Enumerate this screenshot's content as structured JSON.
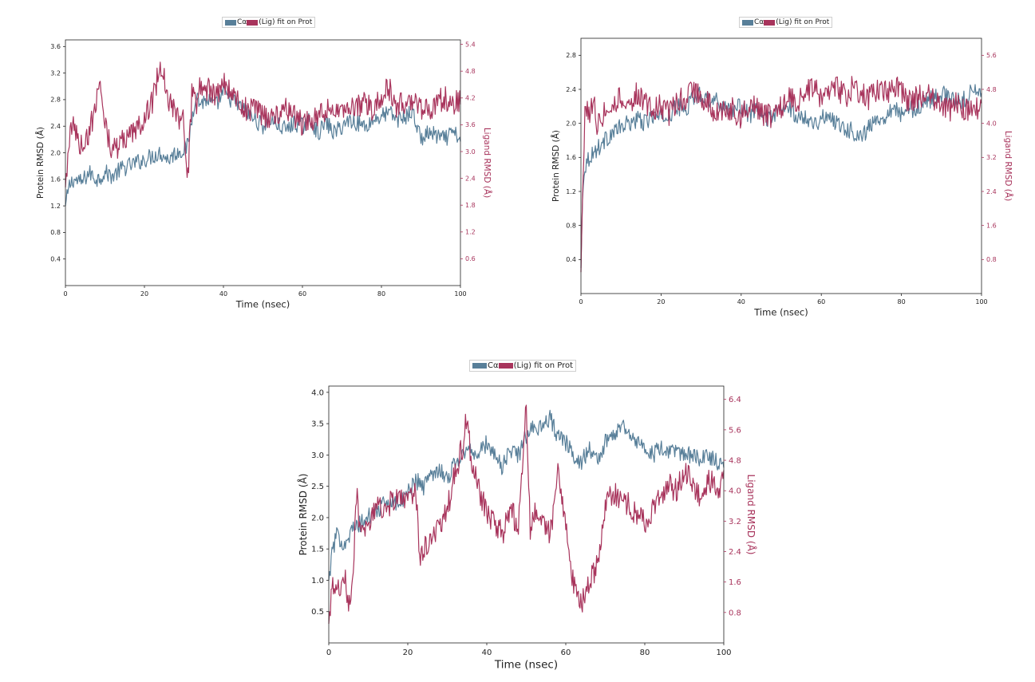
{
  "legend": {
    "label_ca": "Cα",
    "label_lig": "(Lig) fit on Prot"
  },
  "colors": {
    "protein": "#587f99",
    "ligand": "#a8345c",
    "axis": "#222222"
  },
  "chart_data": [
    {
      "type": "line",
      "xlabel": "Time (nsec)",
      "ylabel_left": "Protein RMSD (Å)",
      "ylabel_right": "Ligand RMSD (Å)",
      "xlim": [
        0,
        100
      ],
      "ylim_left": [
        0,
        3.7
      ],
      "ylim_right": [
        0,
        5.5
      ],
      "x_ticks": [
        0,
        20,
        40,
        60,
        80,
        100
      ],
      "y_ticks_left": [
        "0.4",
        "0.8",
        "1.2",
        "1.6",
        "2.0",
        "2.4",
        "2.8",
        "3.2",
        "3.6"
      ],
      "y_ticks_right": [
        "0.6",
        "1.2",
        "1.8",
        "2.4",
        "3.0",
        "3.6",
        "4.2",
        "4.8",
        "5.4"
      ],
      "series": [
        {
          "name": "Cα",
          "axis": "left",
          "x": [
            0,
            1,
            2,
            4,
            6,
            8,
            10,
            12,
            14,
            16,
            18,
            20,
            22,
            24,
            26,
            28,
            30,
            31,
            32,
            33,
            34,
            36,
            38,
            40,
            42,
            44,
            46,
            48,
            50,
            52,
            54,
            56,
            58,
            60,
            62,
            64,
            66,
            68,
            70,
            72,
            74,
            76,
            78,
            80,
            82,
            84,
            86,
            88,
            90,
            92,
            94,
            96,
            98,
            100
          ],
          "y": [
            1.2,
            1.5,
            1.6,
            1.55,
            1.7,
            1.6,
            1.7,
            1.65,
            1.75,
            1.8,
            1.85,
            1.9,
            1.95,
            2.0,
            1.9,
            2.0,
            2.05,
            2.1,
            2.5,
            2.9,
            2.75,
            2.8,
            2.7,
            2.9,
            2.8,
            2.7,
            2.6,
            2.5,
            2.4,
            2.5,
            2.4,
            2.35,
            2.45,
            2.4,
            2.5,
            2.3,
            2.45,
            2.3,
            2.4,
            2.5,
            2.45,
            2.4,
            2.5,
            2.55,
            2.6,
            2.5,
            2.55,
            2.6,
            2.2,
            2.3,
            2.25,
            2.2,
            2.3,
            2.2
          ]
        },
        {
          "name": "(Lig) fit on Prot",
          "axis": "right",
          "x": [
            0,
            1,
            2,
            4,
            6,
            8,
            9,
            10,
            12,
            14,
            16,
            18,
            20,
            22,
            23,
            24,
            25,
            26,
            28,
            30,
            31,
            32,
            33,
            34,
            36,
            38,
            40,
            42,
            44,
            46,
            48,
            50,
            52,
            54,
            56,
            58,
            60,
            62,
            64,
            66,
            68,
            70,
            72,
            74,
            76,
            78,
            80,
            82,
            84,
            86,
            88,
            90,
            92,
            94,
            96,
            98,
            100
          ],
          "y": [
            2.2,
            3.3,
            3.6,
            3.1,
            3.4,
            4.2,
            4.6,
            3.6,
            3.0,
            3.2,
            3.3,
            3.5,
            3.8,
            4.1,
            4.5,
            5.0,
            4.7,
            4.2,
            3.8,
            3.7,
            2.4,
            4.3,
            4.0,
            4.5,
            4.4,
            4.2,
            4.6,
            4.3,
            4.1,
            3.9,
            4.0,
            3.8,
            3.7,
            3.9,
            4.0,
            3.8,
            3.6,
            3.7,
            3.8,
            3.9,
            4.0,
            3.8,
            3.9,
            4.0,
            4.1,
            3.9,
            4.3,
            4.4,
            4.0,
            4.1,
            4.2,
            4.0,
            3.9,
            4.1,
            4.2,
            4.0,
            4.2
          ]
        }
      ]
    },
    {
      "type": "line",
      "xlabel": "Time (nsec)",
      "ylabel_left": "Protein RMSD (Å)",
      "ylabel_right": "Ligand RMSD (Å)",
      "xlim": [
        0,
        100
      ],
      "ylim_left": [
        0,
        3.0
      ],
      "ylim_right": [
        0,
        6.0
      ],
      "x_ticks": [
        0,
        20,
        40,
        60,
        80,
        100
      ],
      "y_ticks_left": [
        "0.4",
        "0.8",
        "1.2",
        "1.6",
        "2.0",
        "2.4",
        "2.8"
      ],
      "y_ticks_right": [
        "0.8",
        "1.6",
        "2.4",
        "3.2",
        "4.0",
        "4.8",
        "5.6"
      ],
      "series": [
        {
          "name": "Cα",
          "axis": "left",
          "x": [
            0,
            0.5,
            1,
            2,
            4,
            6,
            8,
            10,
            12,
            14,
            16,
            18,
            20,
            22,
            24,
            26,
            28,
            30,
            32,
            34,
            36,
            38,
            40,
            42,
            44,
            46,
            48,
            50,
            52,
            54,
            56,
            58,
            60,
            62,
            64,
            66,
            68,
            70,
            72,
            74,
            76,
            78,
            80,
            82,
            84,
            86,
            88,
            90,
            92,
            94,
            96,
            98,
            100
          ],
          "y": [
            0.3,
            1.3,
            1.5,
            1.6,
            1.7,
            1.8,
            1.9,
            1.95,
            2.0,
            2.05,
            2.0,
            2.1,
            2.05,
            2.1,
            2.2,
            2.15,
            2.3,
            2.35,
            2.3,
            2.25,
            2.2,
            2.15,
            2.2,
            2.1,
            2.15,
            2.05,
            2.1,
            2.15,
            2.2,
            2.05,
            2.1,
            2.0,
            2.05,
            2.1,
            2.0,
            1.95,
            1.9,
            1.85,
            1.95,
            2.05,
            2.1,
            2.2,
            2.1,
            2.15,
            2.2,
            2.25,
            2.3,
            2.35,
            2.3,
            2.25,
            2.3,
            2.4,
            2.3
          ]
        },
        {
          "name": "(Lig) fit on Prot",
          "axis": "right",
          "x": [
            0,
            0.5,
            1,
            2,
            3,
            4,
            6,
            8,
            10,
            12,
            14,
            16,
            18,
            20,
            22,
            24,
            26,
            28,
            30,
            32,
            34,
            36,
            38,
            40,
            42,
            44,
            46,
            48,
            50,
            52,
            54,
            56,
            58,
            60,
            62,
            64,
            66,
            68,
            70,
            72,
            74,
            76,
            78,
            80,
            82,
            84,
            86,
            88,
            90,
            92,
            94,
            96,
            98,
            100
          ],
          "y": [
            0.5,
            2.6,
            4.4,
            4.2,
            4.6,
            4.0,
            4.3,
            4.5,
            4.6,
            4.4,
            4.7,
            4.5,
            4.3,
            4.4,
            4.2,
            4.6,
            4.5,
            4.8,
            4.6,
            4.5,
            4.2,
            4.4,
            4.3,
            4.1,
            4.5,
            4.3,
            4.2,
            4.1,
            4.4,
            4.6,
            4.5,
            4.7,
            4.8,
            4.6,
            4.7,
            4.8,
            4.6,
            4.9,
            4.7,
            4.6,
            4.8,
            4.7,
            4.9,
            4.8,
            4.5,
            4.6,
            4.7,
            4.5,
            4.4,
            4.3,
            4.5,
            4.3,
            4.4,
            4.4
          ]
        }
      ]
    },
    {
      "type": "line",
      "xlabel": "Time (nsec)",
      "ylabel_left": "Protein RMSD (Å)",
      "ylabel_right": "Ligand RMSD (Å)",
      "xlim": [
        0,
        100
      ],
      "ylim_left": [
        0,
        4.1
      ],
      "ylim_right": [
        0,
        6.75
      ],
      "x_ticks": [
        0,
        20,
        40,
        60,
        80,
        100
      ],
      "y_ticks_left": [
        "0.5",
        "1.0",
        "1.5",
        "2.0",
        "2.5",
        "3.0",
        "3.5",
        "4.0"
      ],
      "y_ticks_right": [
        "0.8",
        "1.6",
        "2.4",
        "3.2",
        "4.0",
        "4.8",
        "5.6",
        "6.4"
      ],
      "series": [
        {
          "name": "Cα",
          "axis": "left",
          "x": [
            0,
            1,
            2,
            4,
            6,
            8,
            10,
            12,
            14,
            16,
            18,
            20,
            22,
            24,
            26,
            28,
            30,
            32,
            34,
            36,
            38,
            40,
            42,
            44,
            46,
            48,
            50,
            52,
            54,
            56,
            58,
            60,
            62,
            64,
            66,
            68,
            70,
            72,
            74,
            76,
            78,
            80,
            82,
            84,
            86,
            88,
            90,
            92,
            94,
            96,
            98,
            100
          ],
          "y": [
            1.0,
            1.5,
            1.7,
            1.6,
            1.8,
            1.9,
            2.0,
            2.1,
            2.2,
            2.3,
            2.2,
            2.4,
            2.6,
            2.5,
            2.7,
            2.8,
            2.6,
            2.9,
            3.0,
            3.1,
            3.0,
            3.2,
            3.0,
            2.8,
            3.1,
            3.0,
            3.3,
            3.5,
            3.4,
            3.6,
            3.3,
            3.2,
            3.0,
            2.9,
            3.1,
            2.9,
            3.2,
            3.3,
            3.5,
            3.4,
            3.2,
            3.1,
            3.0,
            3.1,
            3.0,
            3.1,
            3.0,
            3.0,
            2.9,
            3.0,
            2.9,
            2.9
          ]
        },
        {
          "name": "(Lig) fit on Prot",
          "axis": "right",
          "x": [
            0,
            1,
            2,
            4,
            5,
            6,
            7,
            8,
            10,
            12,
            14,
            16,
            18,
            20,
            22,
            23,
            24,
            26,
            28,
            30,
            32,
            34,
            35,
            36,
            38,
            40,
            42,
            44,
            46,
            48,
            50,
            51,
            52,
            54,
            56,
            58,
            60,
            61,
            62,
            63,
            64,
            66,
            68,
            70,
            72,
            74,
            76,
            78,
            80,
            82,
            84,
            86,
            88,
            90,
            92,
            94,
            96,
            98,
            100
          ],
          "y": [
            0.5,
            1.5,
            1.2,
            1.8,
            1.0,
            1.5,
            4.0,
            2.8,
            3.2,
            3.5,
            3.6,
            3.7,
            3.8,
            3.6,
            4.2,
            2.2,
            2.4,
            2.8,
            3.0,
            3.5,
            4.5,
            5.2,
            6.0,
            4.8,
            4.0,
            3.4,
            3.2,
            2.8,
            3.6,
            3.0,
            6.2,
            3.0,
            3.5,
            3.3,
            2.8,
            4.5,
            3.2,
            2.2,
            1.5,
            1.2,
            1.0,
            1.6,
            2.0,
            3.5,
            4.0,
            3.8,
            3.6,
            3.4,
            3.2,
            3.5,
            3.8,
            4.2,
            4.0,
            4.5,
            4.2,
            3.9,
            4.3,
            4.1,
            4.2
          ]
        }
      ]
    }
  ]
}
